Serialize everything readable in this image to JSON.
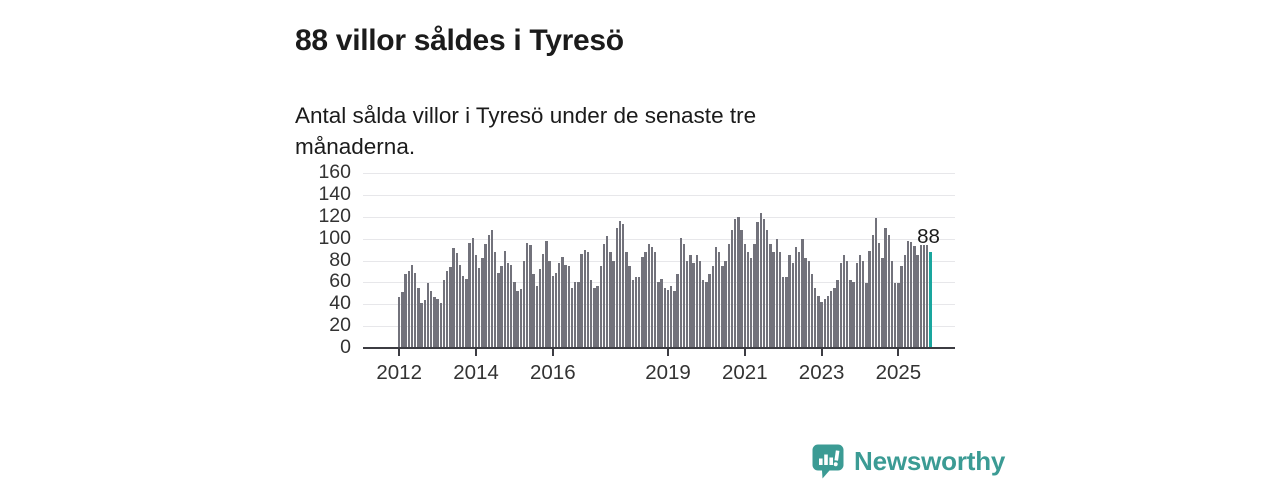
{
  "header": {
    "title": "88 villor såldes i Tyresö",
    "subtitle": "Antal sålda villor i Tyresö under de senaste tre månaderna."
  },
  "branding": {
    "name": "Newsworthy",
    "icon": "newsworthy-speech-bubble-chart-icon"
  },
  "colors": {
    "bar": "#72727b",
    "bar_highlight": "#19a69e",
    "brand_teal": "#3b9b94",
    "axis_text": "#333333",
    "grid": "#e7e7ea",
    "axis_line": "#3c3c42",
    "title_text": "#1b1b1b",
    "annotation_text": "#1b1b1b",
    "background": "#ffffff"
  },
  "chart_data": {
    "type": "bar",
    "title": "88 villor såldes i Tyresö",
    "subtitle": "Antal sålda villor i Tyresö under de senaste tre månaderna.",
    "xlabel": "",
    "ylabel": "",
    "x_start": "2012-01",
    "x_end": "2025-11",
    "x_frequency": "monthly",
    "ylim": [
      0,
      160
    ],
    "y_ticks": [
      0,
      20,
      40,
      60,
      80,
      100,
      120,
      140,
      160
    ],
    "x_tick_labels": [
      "2012",
      "2014",
      "2016",
      "2019",
      "2021",
      "2023",
      "2025"
    ],
    "grid": "horizontal",
    "legend": "none",
    "highlight_last": true,
    "highlight_label": "88",
    "highlight_value": 88,
    "values": [
      47,
      51,
      68,
      70,
      76,
      69,
      55,
      41,
      44,
      59,
      52,
      47,
      45,
      41,
      62,
      70,
      74,
      91,
      87,
      76,
      66,
      63,
      96,
      101,
      85,
      73,
      82,
      95,
      103,
      108,
      88,
      69,
      75,
      89,
      78,
      76,
      60,
      52,
      54,
      80,
      96,
      94,
      68,
      57,
      72,
      86,
      98,
      80,
      66,
      69,
      78,
      83,
      76,
      75,
      55,
      60,
      60,
      86,
      90,
      88,
      62,
      55,
      57,
      75,
      95,
      102,
      88,
      80,
      110,
      116,
      113,
      88,
      75,
      62,
      65,
      65,
      83,
      88,
      95,
      92,
      88,
      60,
      63,
      55,
      53,
      57,
      52,
      68,
      101,
      95,
      80,
      85,
      78,
      85,
      80,
      62,
      60,
      68,
      75,
      92,
      88,
      75,
      80,
      95,
      108,
      118,
      120,
      108,
      95,
      88,
      82,
      95,
      115,
      123,
      118,
      108,
      95,
      88,
      100,
      88,
      65,
      65,
      85,
      78,
      92,
      88,
      100,
      82,
      80,
      68,
      55,
      48,
      42,
      45,
      48,
      52,
      55,
      62,
      78,
      85,
      80,
      62,
      60,
      78,
      85,
      80,
      59,
      89,
      103,
      119,
      96,
      82,
      110,
      103,
      80,
      59,
      59,
      75,
      85,
      98,
      97,
      93,
      85,
      94,
      94,
      94,
      88
    ]
  }
}
